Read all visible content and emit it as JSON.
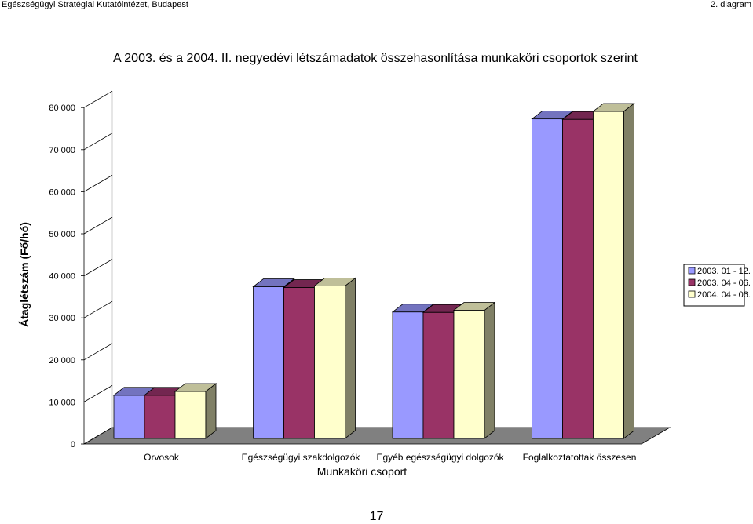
{
  "header": {
    "institute": "Egészségügyi Stratégiai Kutatóintézet, Budapest",
    "diagram_label": "2. diagram"
  },
  "page": {
    "number": "17"
  },
  "colors": {
    "series": [
      "#9999ff",
      "#993366",
      "#ffffcc"
    ],
    "series_top": [
      "#7373bf",
      "#732650",
      "#bfbf99"
    ],
    "side": "#808066",
    "floor": "#808080"
  },
  "chart_data": {
    "type": "bar",
    "title": "A 2003. és a 2004. II. negyedévi létszámadatok összehasonlítása munkaköri csoportok szerint",
    "xlabel": "Munkaköri csoport",
    "ylabel": "Átaglétszám (Fő/hó)",
    "ylim": [
      0,
      80000
    ],
    "yticks": [
      "0",
      "10 000",
      "20 000",
      "30 000",
      "40 000",
      "50 000",
      "60 000",
      "70 000",
      "80 000"
    ],
    "categories": [
      "Orvosok",
      "Egészségügyi szakdolgozók",
      "Egyéb egészségügyi dolgozók",
      "Foglalkoztatottak összesen"
    ],
    "series": [
      {
        "name": "2003. 01 - 12.",
        "values": [
          10300,
          36100,
          30100,
          76000
        ]
      },
      {
        "name": "2003. 04 - 06.",
        "values": [
          10300,
          35900,
          30000,
          75900
        ]
      },
      {
        "name": "2004. 04 - 06.",
        "values": [
          11200,
          36300,
          30500,
          77800
        ]
      }
    ],
    "grid": false,
    "legend_position": "right"
  }
}
